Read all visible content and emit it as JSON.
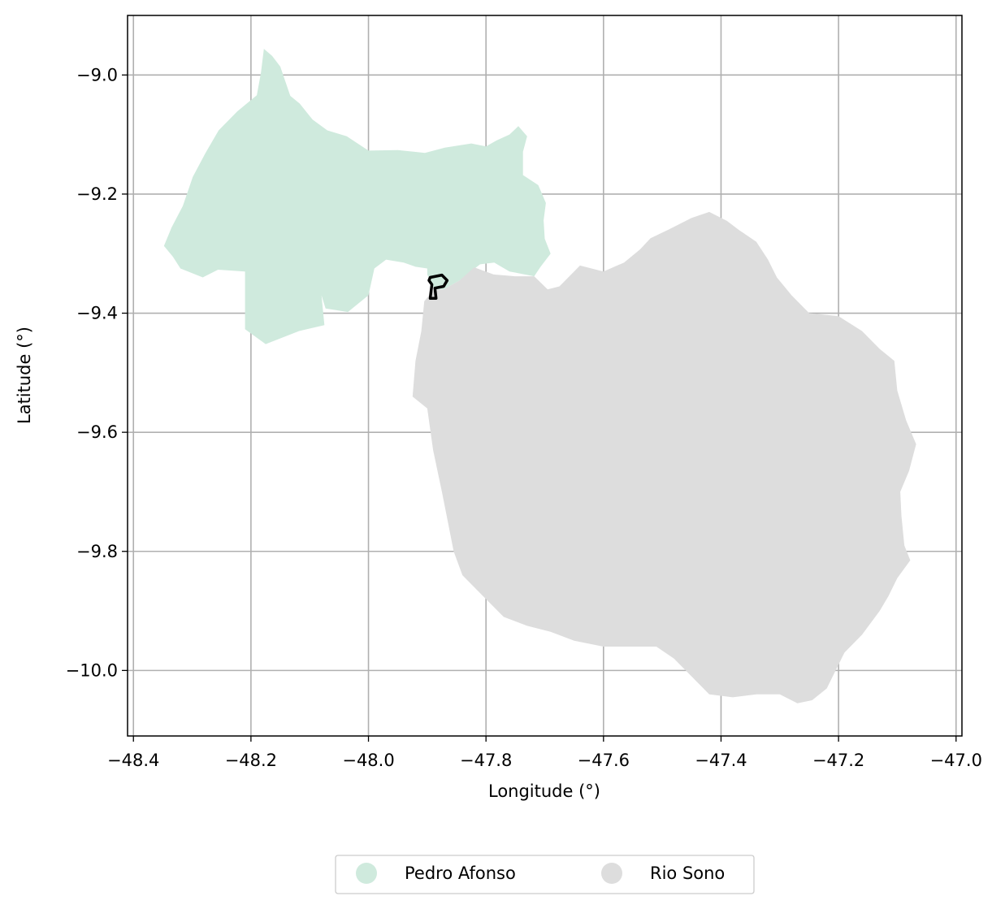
{
  "map": {
    "xlabel": "Longitude (°)",
    "ylabel": "Latitude (°)",
    "xlim": [
      -48.41,
      -46.99
    ],
    "ylim": [
      -10.11,
      -8.9
    ],
    "x_ticks": [
      -48.4,
      -48.2,
      -48.0,
      -47.8,
      -47.6,
      -47.4,
      -47.2,
      -47.0
    ],
    "x_tick_labels": [
      "−48.4",
      "−48.2",
      "−48.0",
      "−47.8",
      "−47.6",
      "−47.4",
      "−47.2",
      "−47.0"
    ],
    "y_ticks": [
      -9.0,
      -9.2,
      -9.4,
      -9.6,
      -9.8,
      -10.0
    ],
    "y_tick_labels": [
      "−9.0",
      "−9.2",
      "−9.4",
      "−9.6",
      "−9.8",
      "−10.0"
    ],
    "grid": true,
    "regions": [
      {
        "name": "Pedro Afonso",
        "color": "#cfeadd",
        "outline": [
          [
            -48.348,
            -9.287
          ],
          [
            -48.335,
            -9.256
          ],
          [
            -48.316,
            -9.22
          ],
          [
            -48.299,
            -9.171
          ],
          [
            -48.278,
            -9.132
          ],
          [
            -48.255,
            -9.093
          ],
          [
            -48.223,
            -9.061
          ],
          [
            -48.19,
            -9.034
          ],
          [
            -48.183,
            -8.996
          ],
          [
            -48.178,
            -8.956
          ],
          [
            -48.164,
            -8.968
          ],
          [
            -48.15,
            -8.986
          ],
          [
            -48.133,
            -9.035
          ],
          [
            -48.117,
            -9.048
          ],
          [
            -48.095,
            -9.075
          ],
          [
            -48.07,
            -9.093
          ],
          [
            -48.037,
            -9.103
          ],
          [
            -48.0,
            -9.127
          ],
          [
            -47.95,
            -9.126
          ],
          [
            -47.904,
            -9.131
          ],
          [
            -47.87,
            -9.122
          ],
          [
            -47.825,
            -9.115
          ],
          [
            -47.8,
            -9.12
          ],
          [
            -47.782,
            -9.11
          ],
          [
            -47.76,
            -9.1
          ],
          [
            -47.745,
            -9.086
          ],
          [
            -47.73,
            -9.103
          ],
          [
            -47.737,
            -9.129
          ],
          [
            -47.737,
            -9.168
          ],
          [
            -47.711,
            -9.185
          ],
          [
            -47.698,
            -9.215
          ],
          [
            -47.702,
            -9.244
          ],
          [
            -47.7,
            -9.275
          ],
          [
            -47.69,
            -9.3
          ],
          [
            -47.707,
            -9.322
          ],
          [
            -47.718,
            -9.338
          ],
          [
            -47.76,
            -9.33
          ],
          [
            -47.786,
            -9.315
          ],
          [
            -47.81,
            -9.318
          ],
          [
            -47.845,
            -9.345
          ],
          [
            -47.872,
            -9.36
          ],
          [
            -47.888,
            -9.36
          ],
          [
            -47.9,
            -9.335
          ],
          [
            -47.9,
            -9.325
          ],
          [
            -47.92,
            -9.322
          ],
          [
            -47.94,
            -9.315
          ],
          [
            -47.97,
            -9.31
          ],
          [
            -47.99,
            -9.325
          ],
          [
            -48.0,
            -9.37
          ],
          [
            -48.035,
            -9.398
          ],
          [
            -48.073,
            -9.392
          ],
          [
            -48.08,
            -9.37
          ],
          [
            -48.075,
            -9.42
          ],
          [
            -48.118,
            -9.43
          ],
          [
            -48.175,
            -9.452
          ],
          [
            -48.21,
            -9.427
          ],
          [
            -48.21,
            -9.33
          ],
          [
            -48.256,
            -9.327
          ],
          [
            -48.282,
            -9.34
          ],
          [
            -48.32,
            -9.325
          ],
          [
            -48.333,
            -9.305
          ],
          [
            -48.348,
            -9.287
          ]
        ]
      },
      {
        "name": "Rio Sono",
        "color": "#dddddd",
        "outline": [
          [
            -47.888,
            -9.36
          ],
          [
            -47.872,
            -9.36
          ],
          [
            -47.845,
            -9.345
          ],
          [
            -47.82,
            -9.323
          ],
          [
            -47.787,
            -9.335
          ],
          [
            -47.75,
            -9.338
          ],
          [
            -47.718,
            -9.338
          ],
          [
            -47.695,
            -9.36
          ],
          [
            -47.675,
            -9.355
          ],
          [
            -47.64,
            -9.32
          ],
          [
            -47.6,
            -9.33
          ],
          [
            -47.565,
            -9.315
          ],
          [
            -47.538,
            -9.293
          ],
          [
            -47.52,
            -9.274
          ],
          [
            -47.49,
            -9.26
          ],
          [
            -47.45,
            -9.24
          ],
          [
            -47.42,
            -9.23
          ],
          [
            -47.39,
            -9.245
          ],
          [
            -47.37,
            -9.26
          ],
          [
            -47.34,
            -9.28
          ],
          [
            -47.32,
            -9.31
          ],
          [
            -47.305,
            -9.34
          ],
          [
            -47.28,
            -9.37
          ],
          [
            -47.25,
            -9.4
          ],
          [
            -47.2,
            -9.405
          ],
          [
            -47.16,
            -9.43
          ],
          [
            -47.13,
            -9.46
          ],
          [
            -47.105,
            -9.48
          ],
          [
            -47.1,
            -9.53
          ],
          [
            -47.085,
            -9.58
          ],
          [
            -47.068,
            -9.62
          ],
          [
            -47.08,
            -9.665
          ],
          [
            -47.095,
            -9.7
          ],
          [
            -47.093,
            -9.74
          ],
          [
            -47.088,
            -9.79
          ],
          [
            -47.078,
            -9.815
          ],
          [
            -47.1,
            -9.845
          ],
          [
            -47.115,
            -9.875
          ],
          [
            -47.13,
            -9.9
          ],
          [
            -47.16,
            -9.94
          ],
          [
            -47.19,
            -9.97
          ],
          [
            -47.205,
            -10.0
          ],
          [
            -47.22,
            -10.03
          ],
          [
            -47.245,
            -10.05
          ],
          [
            -47.27,
            -10.055
          ],
          [
            -47.3,
            -10.04
          ],
          [
            -47.34,
            -10.04
          ],
          [
            -47.38,
            -10.045
          ],
          [
            -47.42,
            -10.04
          ],
          [
            -47.45,
            -10.01
          ],
          [
            -47.48,
            -9.98
          ],
          [
            -47.51,
            -9.96
          ],
          [
            -47.56,
            -9.96
          ],
          [
            -47.6,
            -9.96
          ],
          [
            -47.65,
            -9.95
          ],
          [
            -47.69,
            -9.935
          ],
          [
            -47.73,
            -9.925
          ],
          [
            -47.77,
            -9.91
          ],
          [
            -47.81,
            -9.87
          ],
          [
            -47.84,
            -9.84
          ],
          [
            -47.855,
            -9.8
          ],
          [
            -47.865,
            -9.75
          ],
          [
            -47.875,
            -9.7
          ],
          [
            -47.89,
            -9.63
          ],
          [
            -47.9,
            -9.56
          ],
          [
            -47.925,
            -9.54
          ],
          [
            -47.92,
            -9.48
          ],
          [
            -47.91,
            -9.43
          ],
          [
            -47.905,
            -9.38
          ],
          [
            -47.888,
            -9.36
          ]
        ]
      }
    ],
    "highlight_outline": [
      [
        -47.895,
        -9.34
      ],
      [
        -47.875,
        -9.336
      ],
      [
        -47.866,
        -9.345
      ],
      [
        -47.872,
        -9.355
      ],
      [
        -47.887,
        -9.358
      ],
      [
        -47.885,
        -9.375
      ],
      [
        -47.895,
        -9.375
      ],
      [
        -47.892,
        -9.352
      ],
      [
        -47.897,
        -9.345
      ],
      [
        -47.895,
        -9.34
      ]
    ],
    "highlight_color": "#000000",
    "grid_color": "#b0b0b0"
  },
  "legend": {
    "items": [
      {
        "label": "Pedro Afonso",
        "color": "#cfeadd"
      },
      {
        "label": "Rio Sono",
        "color": "#dddddd"
      }
    ]
  }
}
